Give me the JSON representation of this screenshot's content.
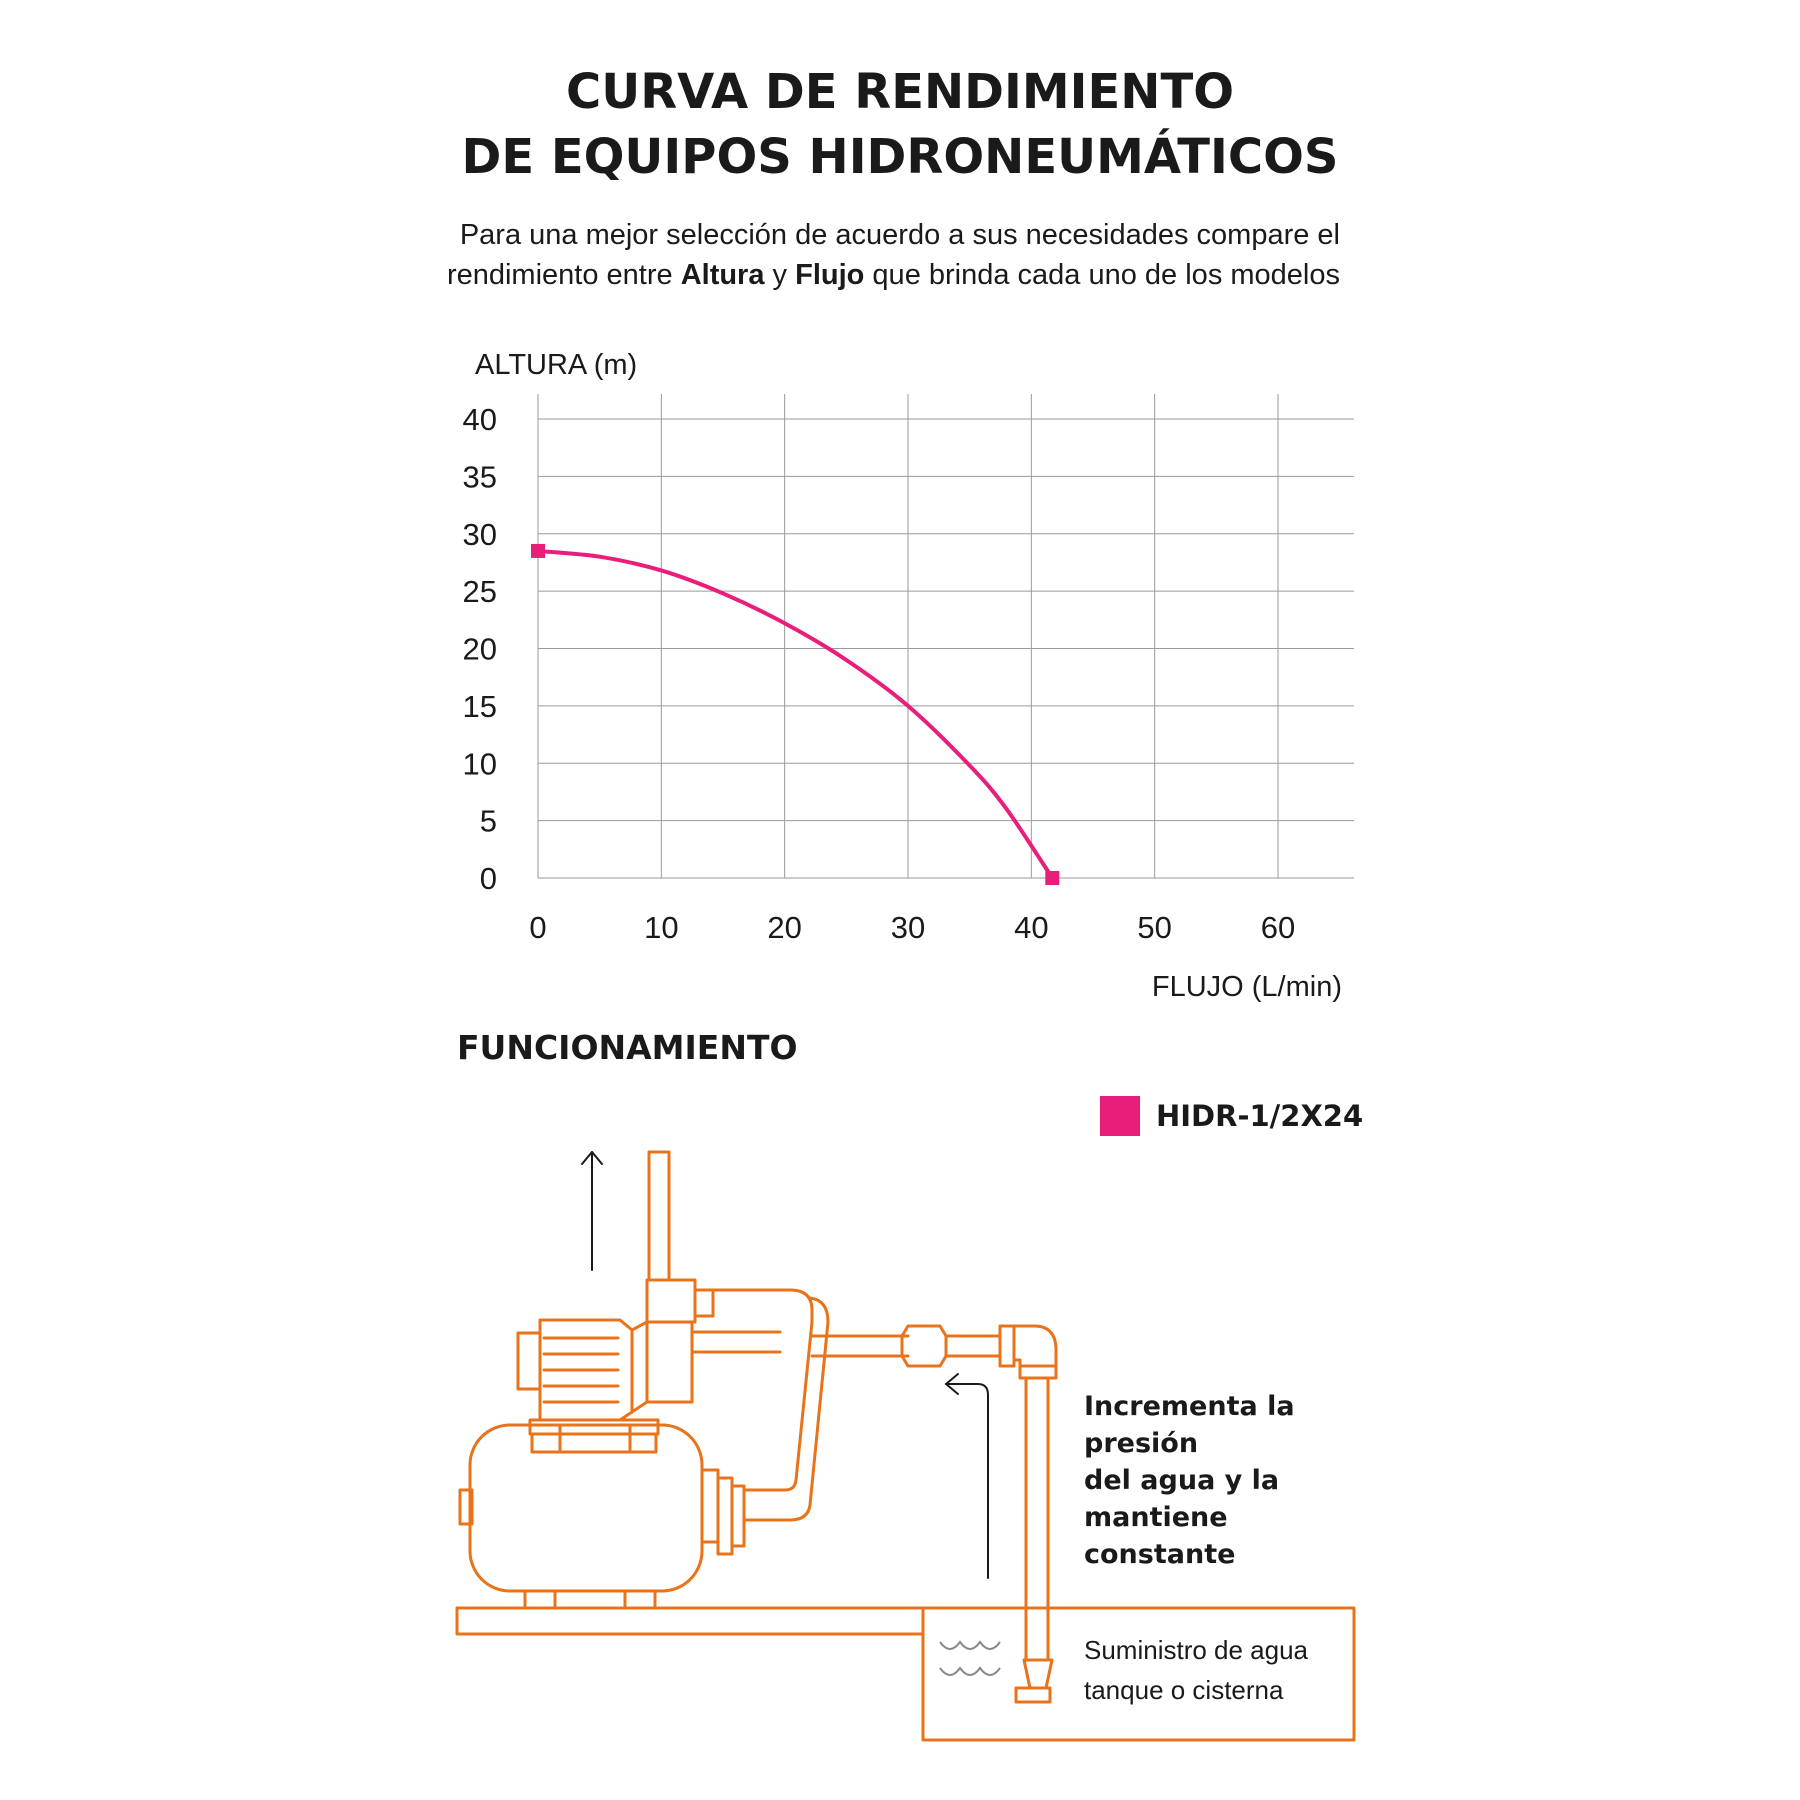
{
  "header": {
    "title_line1": "CURVA DE RENDIMIENTO",
    "title_line2": "DE EQUIPOS HIDRONEUMÁTICOS",
    "subtitle_line1": "Para una mejor selección de acuerdo a sus necesidades compare el",
    "subtitle_pre": "rendimiento entre ",
    "subtitle_bold1": "Altura",
    "subtitle_mid": " y ",
    "subtitle_bold2": "Flujo",
    "subtitle_post": " que brinda cada uno de los modelos"
  },
  "chart_data": {
    "type": "line",
    "title": "",
    "xlabel": "FLUJO (L/min)",
    "ylabel": "ALTURA (m)",
    "xlim": [
      0,
      66
    ],
    "ylim": [
      0,
      40
    ],
    "x_ticks": [
      "0",
      "10",
      "20",
      "30",
      "40",
      "50",
      "60"
    ],
    "y_ticks": [
      "0",
      "5",
      "10",
      "15",
      "20",
      "25",
      "30",
      "35",
      "40"
    ],
    "grid": true,
    "legend_position": "bottom-right",
    "series": [
      {
        "name": "HIDR-1/2X24",
        "color": "#e91e7a",
        "x": [
          0,
          5,
          10,
          15,
          20,
          25,
          30,
          35,
          38,
          41.7
        ],
        "y": [
          28.5,
          28.0,
          26.8,
          24.8,
          22.2,
          19.0,
          15.0,
          9.8,
          6.0,
          0
        ],
        "markers_at": [
          0,
          9
        ]
      }
    ]
  },
  "diagram": {
    "section_title": "FUNCIONAMIENTO",
    "callout_line1": "Incrementa la presión",
    "callout_line2": "del agua y la mantiene",
    "callout_line3": "constante",
    "supply_line1": "Suministro de agua",
    "supply_line2": "tanque o cisterna",
    "stroke_color": "#e8731a"
  }
}
